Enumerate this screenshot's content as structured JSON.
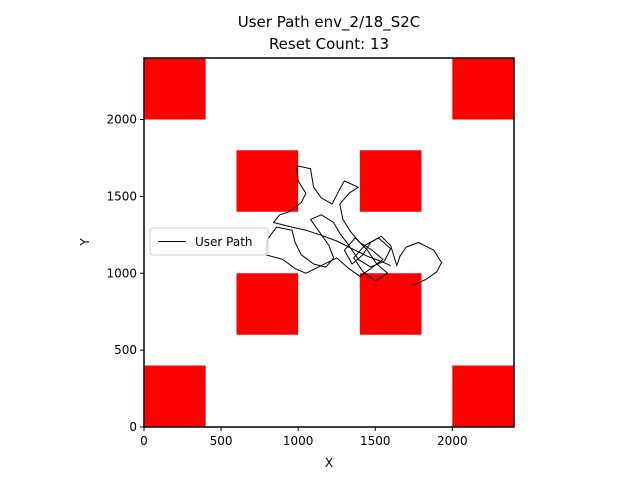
{
  "chart_data": {
    "type": "line",
    "title": "User Path env_2/18_S2C",
    "subtitle": "Reset Count: 13",
    "xlabel": "X",
    "ylabel": "Y",
    "xlim": [
      0,
      2400
    ],
    "ylim": [
      0,
      2400
    ],
    "xticks": [
      0,
      500,
      1000,
      1500,
      2000
    ],
    "yticks": [
      0,
      500,
      1000,
      1500,
      2000
    ],
    "grid": false,
    "legend": {
      "entries": [
        "User Path"
      ],
      "placement": "center-left"
    },
    "obstacle_color": "#ff0000",
    "path_color": "#000000",
    "obstacles": [
      {
        "x": 0,
        "y": 2000,
        "w": 400,
        "h": 400
      },
      {
        "x": 2000,
        "y": 2000,
        "w": 400,
        "h": 400
      },
      {
        "x": 600,
        "y": 1400,
        "w": 400,
        "h": 400
      },
      {
        "x": 1400,
        "y": 1400,
        "w": 400,
        "h": 400
      },
      {
        "x": 600,
        "y": 600,
        "w": 400,
        "h": 400
      },
      {
        "x": 1400,
        "y": 600,
        "w": 400,
        "h": 400
      },
      {
        "x": 0,
        "y": 0,
        "w": 400,
        "h": 400
      },
      {
        "x": 2000,
        "y": 0,
        "w": 400,
        "h": 400
      }
    ],
    "series": [
      {
        "name": "User Path",
        "points": [
          [
            1740,
            920
          ],
          [
            1830,
            960
          ],
          [
            1900,
            1010
          ],
          [
            1930,
            1070
          ],
          [
            1880,
            1150
          ],
          [
            1780,
            1200
          ],
          [
            1700,
            1170
          ],
          [
            1660,
            1110
          ],
          [
            1640,
            1050
          ],
          [
            1600,
            1180
          ],
          [
            1540,
            1240
          ],
          [
            1470,
            1200
          ],
          [
            1420,
            1120
          ],
          [
            1350,
            1060
          ],
          [
            1300,
            1150
          ],
          [
            1370,
            1230
          ],
          [
            1450,
            1150
          ],
          [
            1510,
            1060
          ],
          [
            1580,
            1000
          ],
          [
            1500,
            950
          ],
          [
            1420,
            1010
          ],
          [
            1360,
            1100
          ],
          [
            1430,
            1180
          ],
          [
            1520,
            1230
          ],
          [
            1600,
            1160
          ],
          [
            1560,
            1080
          ],
          [
            1470,
            1040
          ],
          [
            1390,
            1090
          ],
          [
            1330,
            1180
          ],
          [
            1270,
            1260
          ],
          [
            1230,
            1330
          ],
          [
            1150,
            1380
          ],
          [
            1080,
            1350
          ],
          [
            1130,
            1280
          ],
          [
            1200,
            1180
          ],
          [
            1230,
            1100
          ],
          [
            1180,
            1040
          ],
          [
            1100,
            1060
          ],
          [
            1020,
            1120
          ],
          [
            980,
            1200
          ],
          [
            960,
            1280
          ],
          [
            860,
            1300
          ],
          [
            800,
            1220
          ],
          [
            790,
            1120
          ],
          [
            900,
            1090
          ],
          [
            980,
            1030
          ],
          [
            1050,
            1000
          ],
          [
            1150,
            1050
          ],
          [
            1250,
            1100
          ],
          [
            1330,
            1030
          ],
          [
            1400,
            980
          ],
          [
            1470,
            1030
          ],
          [
            1550,
            1090
          ],
          [
            1480,
            1150
          ],
          [
            1400,
            1200
          ],
          [
            1340,
            1270
          ],
          [
            1290,
            1350
          ],
          [
            1270,
            1450
          ],
          [
            1330,
            1520
          ],
          [
            1390,
            1560
          ],
          [
            1300,
            1600
          ],
          [
            1260,
            1530
          ],
          [
            1220,
            1450
          ],
          [
            1150,
            1490
          ],
          [
            1100,
            1560
          ],
          [
            1080,
            1680
          ],
          [
            990,
            1700
          ],
          [
            1000,
            1600
          ],
          [
            1050,
            1520
          ],
          [
            1020,
            1460
          ],
          [
            940,
            1400
          ],
          [
            880,
            1380
          ],
          [
            840,
            1330
          ],
          [
            960,
            1300
          ],
          [
            1050,
            1280
          ],
          [
            1140,
            1250
          ],
          [
            1250,
            1210
          ],
          [
            1350,
            1160
          ],
          [
            1450,
            1110
          ],
          [
            1530,
            1080
          ],
          [
            1600,
            1050
          ]
        ]
      }
    ]
  }
}
